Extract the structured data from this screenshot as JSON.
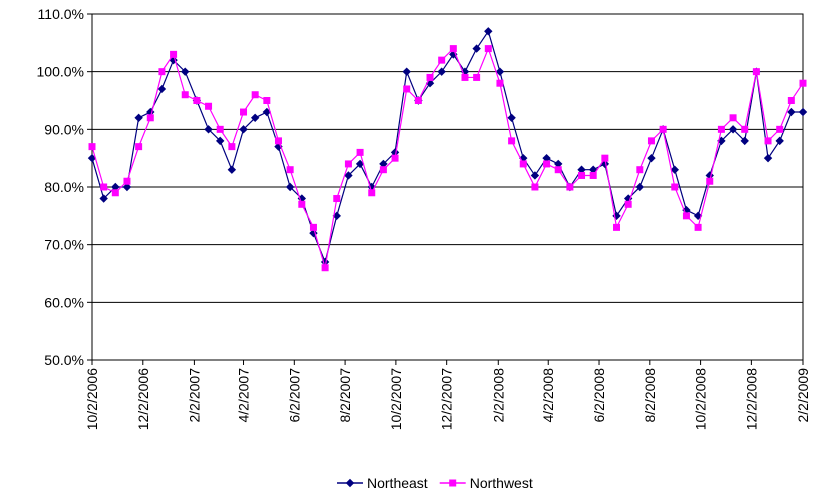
{
  "chart_data": {
    "type": "line",
    "x": [
      "10/2/2006",
      "10/16/2006",
      "10/30/2006",
      "11/13/2006",
      "11/27/2006",
      "12/11/2006",
      "12/25/2006",
      "1/8/2007",
      "1/22/2007",
      "2/5/2007",
      "2/19/2007",
      "3/5/2007",
      "3/19/2007",
      "4/2/2007",
      "4/16/2007",
      "4/30/2007",
      "5/14/2007",
      "5/28/2007",
      "6/11/2007",
      "6/25/2007",
      "7/9/2007",
      "7/23/2007",
      "8/6/2007",
      "8/20/2007",
      "9/3/2007",
      "9/17/2007",
      "10/1/2007",
      "10/15/2007",
      "10/29/2007",
      "11/12/2007",
      "11/26/2007",
      "12/10/2007",
      "12/24/2007",
      "1/7/2008",
      "1/21/2008",
      "2/4/2008",
      "2/18/2008",
      "3/3/2008",
      "3/17/2008",
      "3/31/2008",
      "4/14/2008",
      "4/28/2008",
      "5/12/2008",
      "5/26/2008",
      "6/9/2008",
      "6/23/2008",
      "7/7/2008",
      "7/21/2008",
      "8/4/2008",
      "8/18/2008",
      "9/1/2008",
      "9/15/2008",
      "9/29/2008",
      "10/13/2008",
      "10/27/2008",
      "11/10/2008",
      "11/24/2008",
      "12/8/2008",
      "12/22/2008",
      "1/5/2009",
      "1/19/2009",
      "2/2/2009"
    ],
    "series": [
      {
        "name": "Northeast",
        "color": "#000080",
        "marker": "diamond",
        "values": [
          85,
          78,
          80,
          80,
          92,
          93,
          97,
          102,
          100,
          95,
          90,
          88,
          83,
          90,
          92,
          93,
          87,
          80,
          78,
          72,
          67,
          75,
          82,
          84,
          80,
          84,
          86,
          100,
          95,
          98,
          100,
          103,
          100,
          104,
          107,
          100,
          92,
          85,
          82,
          85,
          84,
          80,
          83,
          83,
          84,
          75,
          78,
          80,
          85,
          90,
          83,
          76,
          75,
          82,
          88,
          90,
          88,
          100,
          85,
          88,
          93,
          93
        ]
      },
      {
        "name": "Northwest",
        "color": "#ff00ff",
        "marker": "square",
        "values": [
          87,
          80,
          79,
          81,
          87,
          92,
          100,
          103,
          96,
          95,
          94,
          90,
          87,
          93,
          96,
          95,
          88,
          83,
          77,
          73,
          66,
          78,
          84,
          86,
          79,
          83,
          85,
          97,
          95,
          99,
          102,
          104,
          99,
          99,
          104,
          98,
          88,
          84,
          80,
          84,
          83,
          80,
          82,
          82,
          85,
          73,
          77,
          83,
          88,
          90,
          80,
          75,
          73,
          81,
          90,
          92,
          90,
          100,
          88,
          90,
          95,
          98
        ]
      }
    ],
    "xlim": [
      "10/2/2006",
      "2/2/2009"
    ],
    "xticks": [
      "10/2/2006",
      "12/2/2006",
      "2/2/2007",
      "4/2/2007",
      "6/2/2007",
      "8/2/2007",
      "10/2/2007",
      "12/2/2007",
      "2/2/2008",
      "4/2/2008",
      "6/2/2008",
      "8/2/2008",
      "10/2/2008",
      "12/2/2008",
      "2/2/2009"
    ],
    "ylim": [
      50,
      110
    ],
    "yticks": [
      {
        "value": 50,
        "label": "50.0%"
      },
      {
        "value": 60,
        "label": "60.0%"
      },
      {
        "value": 70,
        "label": "70.0%"
      },
      {
        "value": 80,
        "label": "80.0%"
      },
      {
        "value": 90,
        "label": "90.0%"
      },
      {
        "value": 100,
        "label": "100.0%"
      },
      {
        "value": 110,
        "label": "110.0%"
      }
    ],
    "grid": true,
    "legend": "bottom"
  }
}
